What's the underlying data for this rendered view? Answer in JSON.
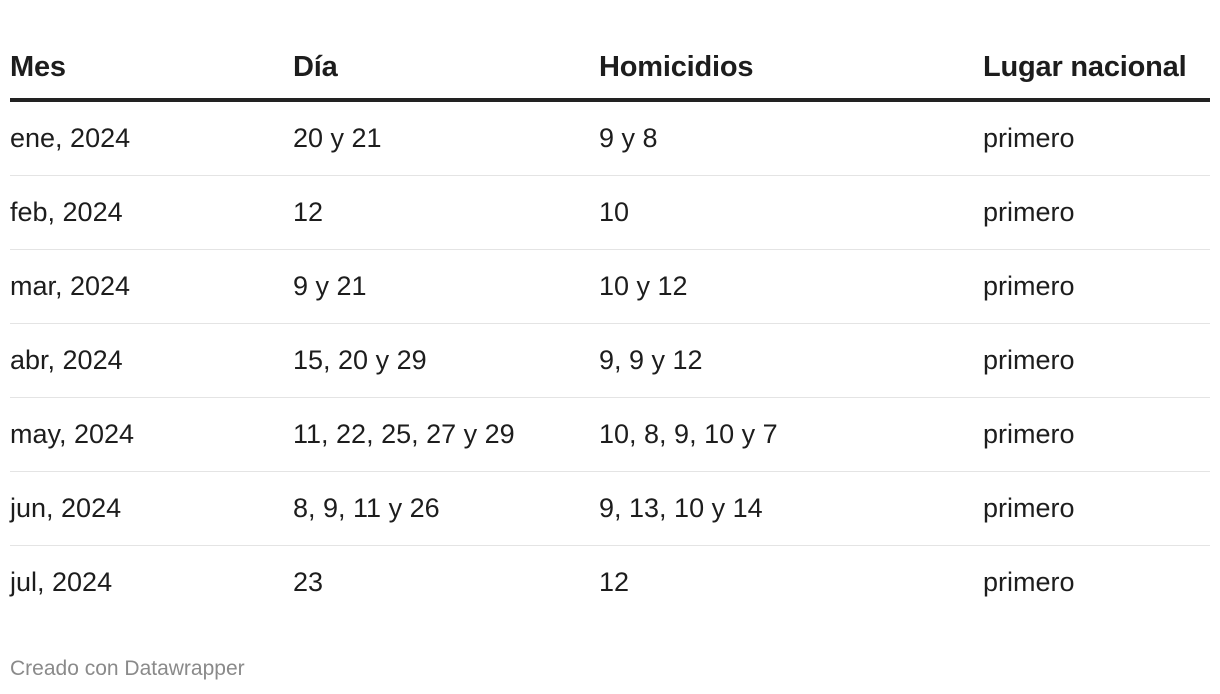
{
  "chart_data": {
    "type": "table",
    "columns": [
      "Mes",
      "Día",
      "Homicidios",
      "Lugar nacional"
    ],
    "rows": [
      [
        "ene, 2024",
        "20 y 21",
        "9 y 8",
        "primero"
      ],
      [
        "feb, 2024",
        "12",
        "10",
        "primero"
      ],
      [
        "mar, 2024",
        "9 y 21",
        "10 y 12",
        "primero"
      ],
      [
        "abr, 2024",
        "15, 20 y 29",
        "9, 9 y 12",
        "primero"
      ],
      [
        "may, 2024",
        "11, 22, 25, 27 y 29",
        "10, 8, 9, 10 y 7",
        "primero"
      ],
      [
        "jun, 2024",
        "8, 9, 11 y 26",
        "9, 13, 10 y 14",
        "primero"
      ],
      [
        "jul, 2024",
        "23",
        "12",
        "primero"
      ]
    ]
  },
  "footer": {
    "credit": "Creado con Datawrapper"
  },
  "colors": {
    "text": "#1d1d1d",
    "header_rule": "#222222",
    "row_rule": "#e4e4e4",
    "footer_text": "#8a8a8a"
  }
}
